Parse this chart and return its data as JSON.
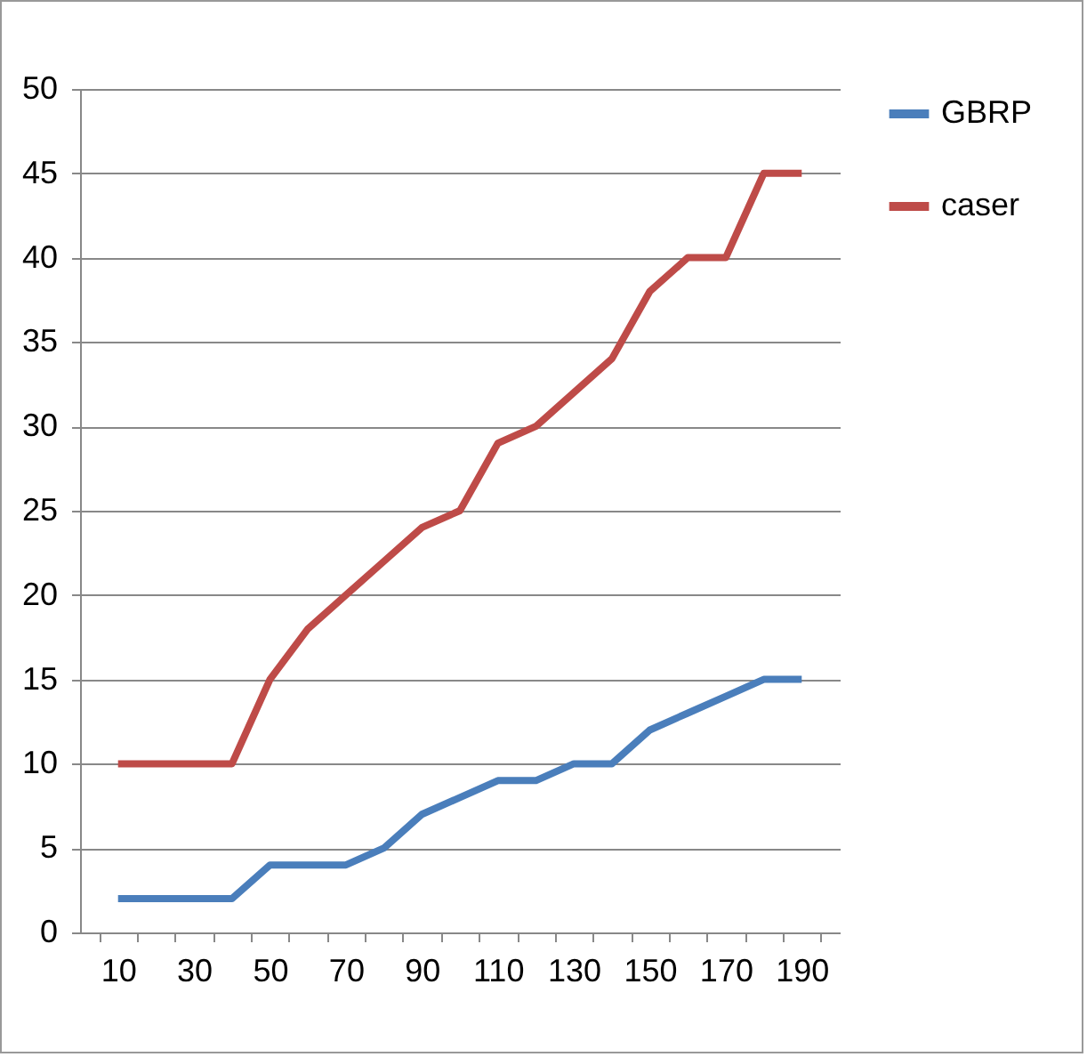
{
  "chart_data": {
    "type": "line",
    "categories": [
      "10",
      null,
      "30",
      null,
      "50",
      null,
      "70",
      null,
      "90",
      null,
      "110",
      null,
      "130",
      null,
      "150",
      null,
      "170",
      null,
      "190"
    ],
    "series": [
      {
        "name": "GBRP",
        "color": "#4a7ebb",
        "values": [
          2,
          2,
          2,
          2,
          4,
          4,
          4,
          5,
          7,
          8,
          9,
          9,
          10,
          10,
          12,
          13,
          14,
          15,
          15
        ]
      },
      {
        "name": "caser",
        "color": "#be4b48",
        "values": [
          10,
          10,
          10,
          10,
          15,
          18,
          20,
          22,
          24,
          25,
          29,
          30,
          32,
          34,
          38,
          40,
          40,
          45,
          45
        ]
      }
    ],
    "ylim": [
      0,
      50
    ],
    "yticks": [
      0,
      5,
      10,
      15,
      20,
      25,
      30,
      35,
      40,
      45,
      50
    ],
    "grid": "y",
    "legend": "right",
    "line_style": "solid",
    "marker": "none"
  }
}
